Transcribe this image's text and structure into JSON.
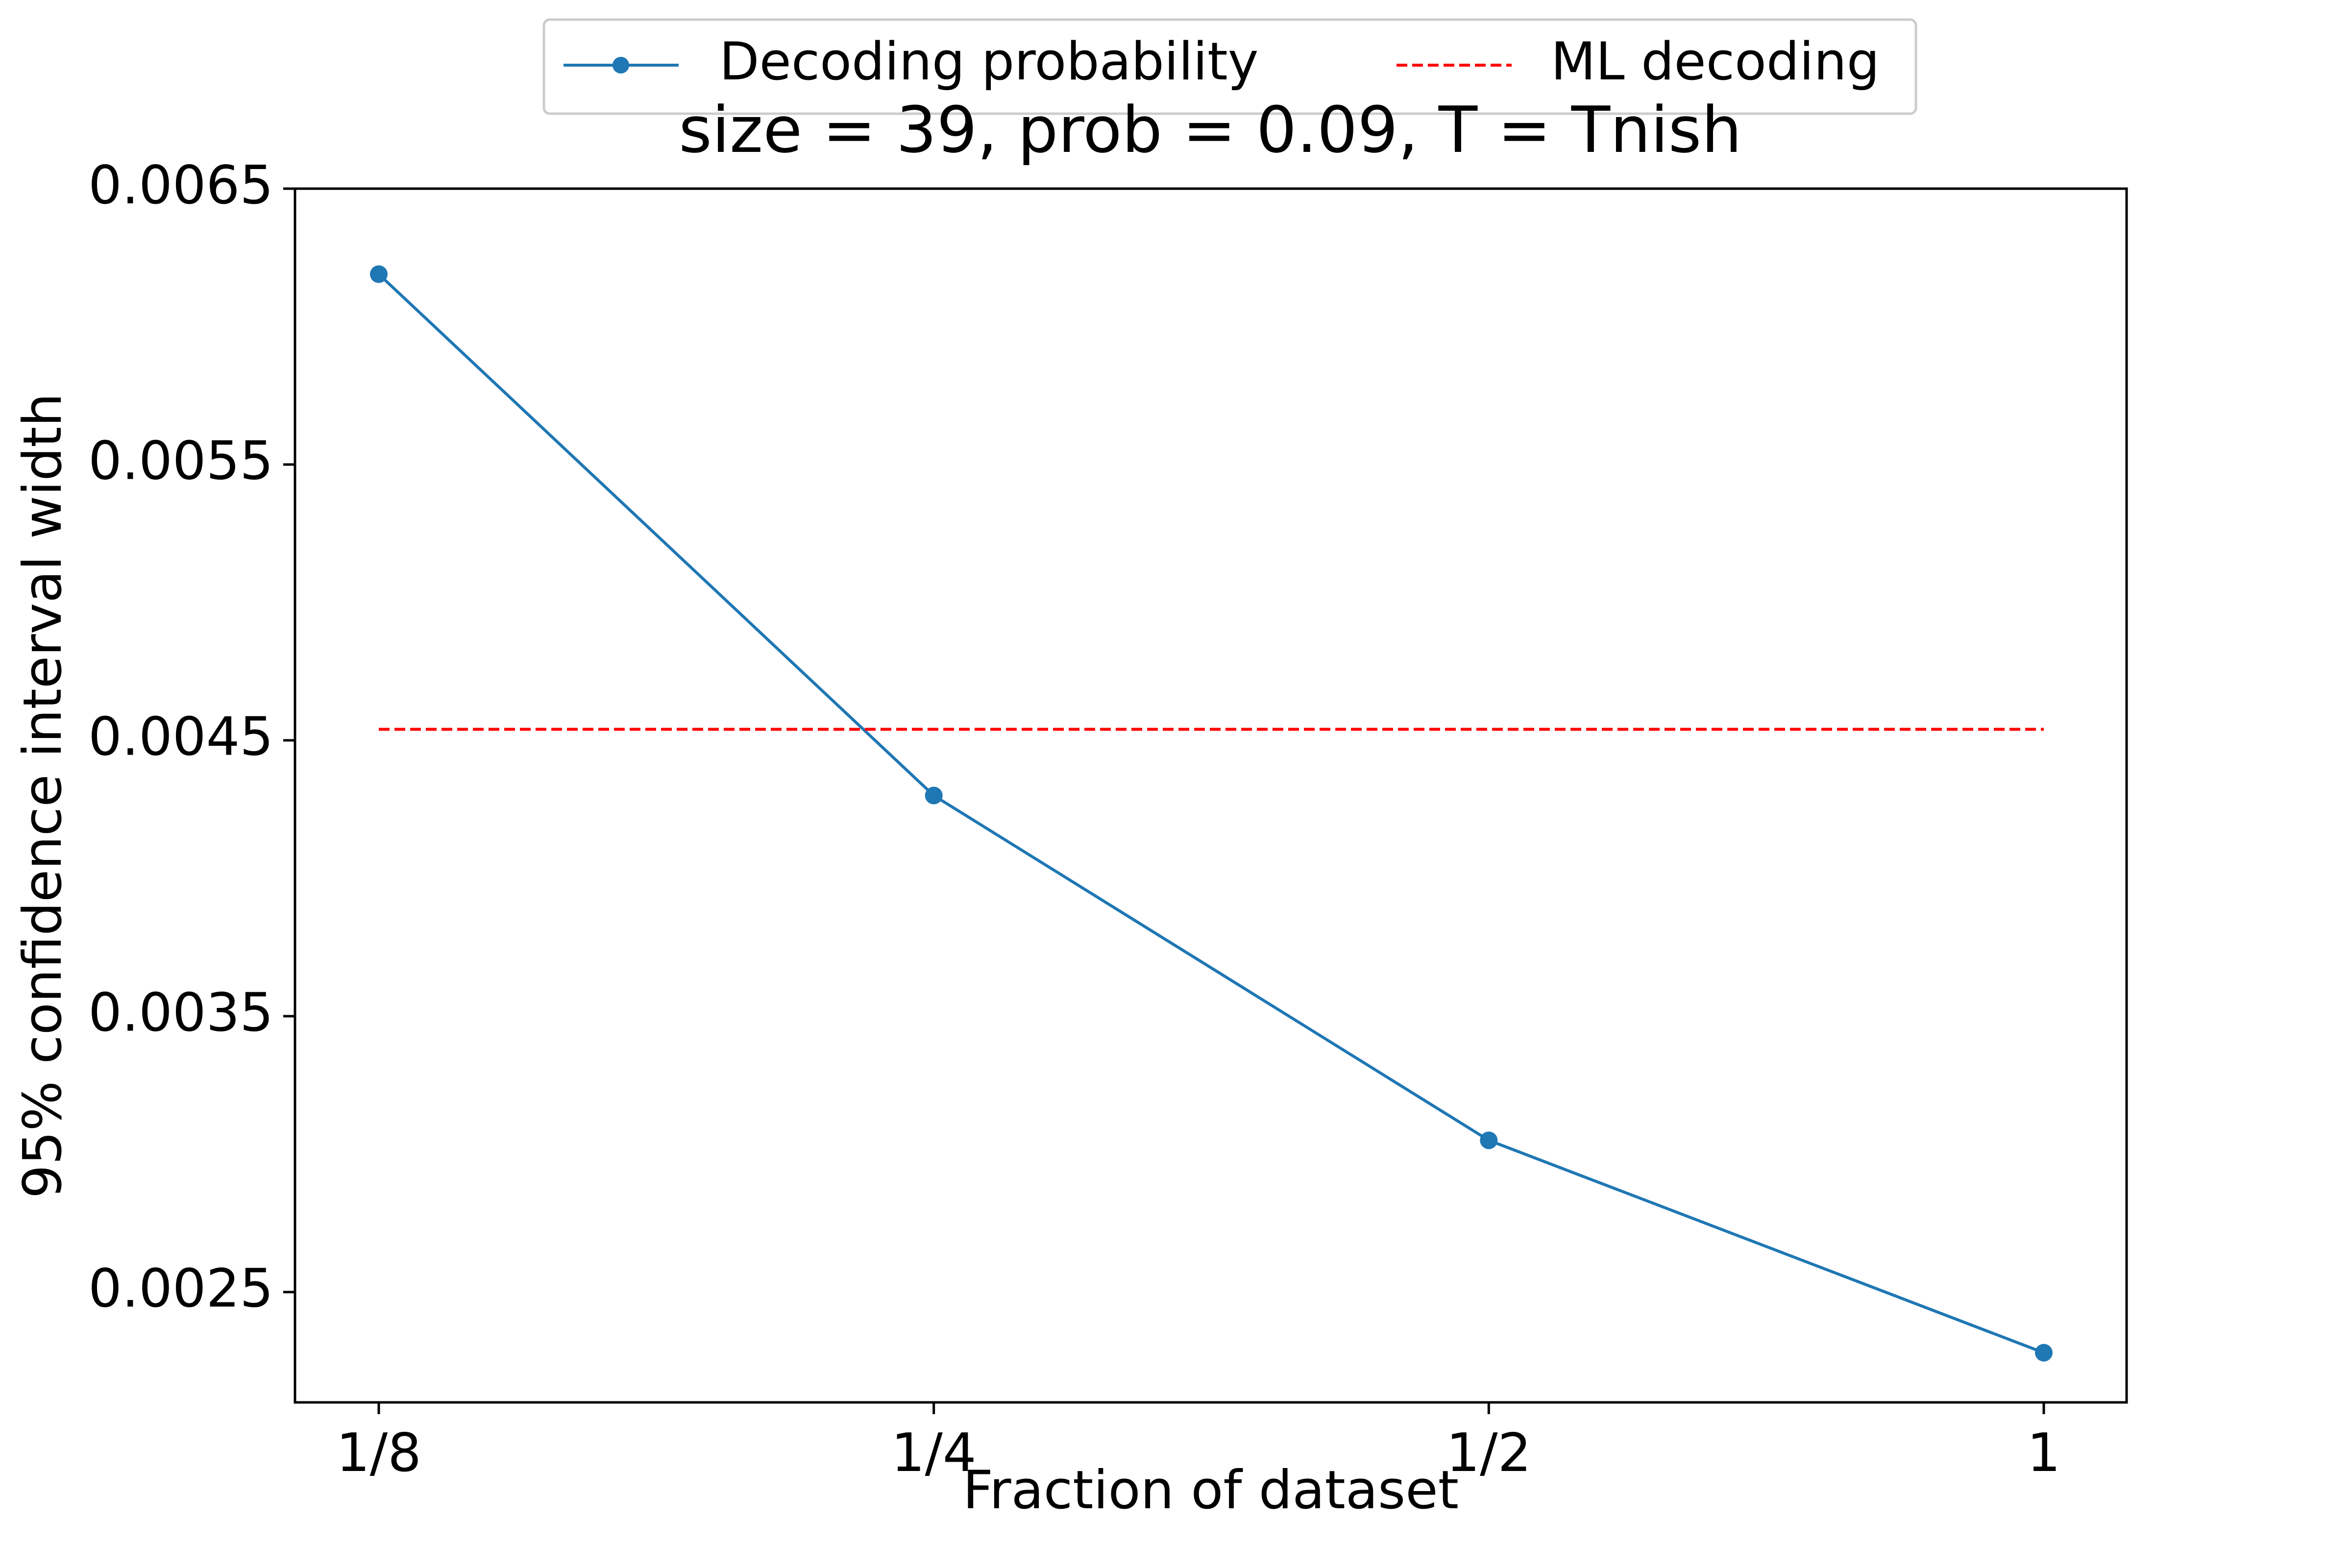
{
  "chart_data": {
    "type": "line",
    "title": "size = 39, prob = 0.09, T = Tnish",
    "xlabel": "Fraction of dataset",
    "ylabel": "95% confidence interval width",
    "categories": [
      "1/8",
      "1/4",
      "1/2",
      "1"
    ],
    "x": [
      0,
      1,
      2,
      3
    ],
    "ylim": [
      0.0021,
      0.0065
    ],
    "yticks": [
      0.0025,
      0.0035,
      0.0045,
      0.0055,
      0.0065
    ],
    "ytick_labels": [
      "0.0025",
      "0.0035",
      "0.0045",
      "0.0055",
      "0.0065"
    ],
    "series": [
      {
        "name": "Decoding probability",
        "values": [
          0.00619,
          0.0043,
          0.00305,
          0.00228
        ],
        "color": "#1f77b4",
        "style": "solid",
        "marker": "circle"
      },
      {
        "name": "ML decoding",
        "values": [
          0.00454,
          0.00454,
          0.00454,
          0.00454
        ],
        "color": "#ff0000",
        "style": "dashed",
        "marker": "none"
      }
    ],
    "grid": false,
    "legend": "top-center"
  }
}
